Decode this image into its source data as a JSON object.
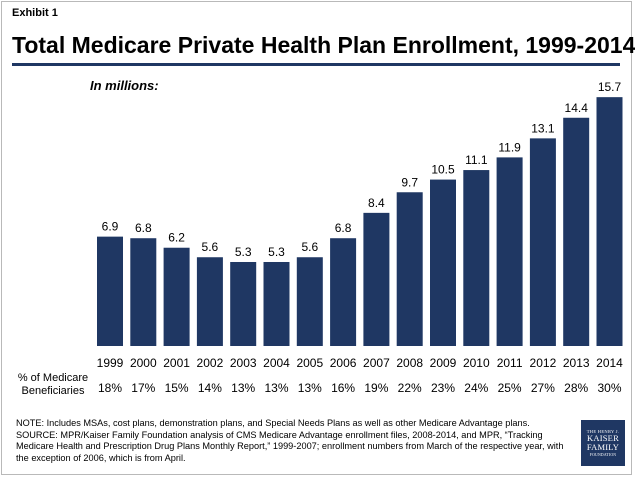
{
  "header": {
    "exhibit": "Exhibit 1",
    "title": "Total Medicare Private Health Plan Enrollment, 1999-2014",
    "unit_label": "In millions:"
  },
  "chart_data": {
    "type": "bar",
    "title": "Total Medicare Private Health Plan Enrollment, 1999-2014",
    "ylabel": "In millions:",
    "xlabel": "",
    "categories": [
      "1999",
      "2000",
      "2001",
      "2002",
      "2003",
      "2004",
      "2005",
      "2006",
      "2007",
      "2008",
      "2009",
      "2010",
      "2011",
      "2012",
      "2013",
      "2014"
    ],
    "values": [
      6.9,
      6.8,
      6.2,
      5.6,
      5.3,
      5.3,
      5.6,
      6.8,
      8.4,
      9.7,
      10.5,
      11.1,
      11.9,
      13.1,
      14.4,
      15.7
    ],
    "value_labels": [
      "6.9",
      "6.8",
      "6.2",
      "5.6",
      "5.3",
      "5.3",
      "5.6",
      "6.8",
      "8.4",
      "9.7",
      "10.5",
      "11.1",
      "11.9",
      "13.1",
      "14.4",
      "15.7"
    ],
    "percent_of_beneficiaries": [
      "18%",
      "17%",
      "15%",
      "14%",
      "13%",
      "13%",
      "13%",
      "16%",
      "19%",
      "22%",
      "23%",
      "24%",
      "25%",
      "27%",
      "28%",
      "30%"
    ],
    "ylim": [
      0,
      16
    ],
    "grid": false,
    "bar_color": "#1f3763"
  },
  "percent_row_label": "% of Medicare Beneficiaries",
  "notes": {
    "note": "NOTE:  Includes MSAs, cost plans, demonstration plans, and Special Needs Plans as well as other Medicare Advantage plans.",
    "source": "SOURCE:  MPR/Kaiser Family Foundation analysis of CMS Medicare Advantage enrollment files, 2008-2014, and MPR, “Tracking Medicare Health and Prescription Drug Plans Monthly Report,” 1999-2007; enrollment numbers from March of the respective year, with the exception of 2006, which is from April."
  },
  "logo": {
    "line1": "THE HENRY J.",
    "line2a": "KAISER",
    "line2b": "FAMILY",
    "line3": "FOUNDATION"
  }
}
